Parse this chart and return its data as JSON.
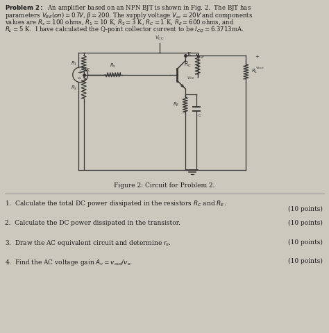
{
  "background_color": "#ccc8be",
  "figsize": [
    4.74,
    4.8
  ],
  "dpi": 100,
  "figure_caption": "Figure 2: Circuit for Problem 2.",
  "questions": [
    "1.  Calculate the total DC power dissipated in the resistors $R_C$ and $R_E$.",
    "2.  Calculate the DC power dissipated in the transistor.",
    "3.  Draw the AC equivalent circuit and determine $r_{\\pi}$.",
    "4.  Find the AC voltage gain $A_v = v_{out}/v_s$."
  ],
  "points": "(10 points)",
  "text_color": "#1a1a1a",
  "circuit_color": "#333333"
}
